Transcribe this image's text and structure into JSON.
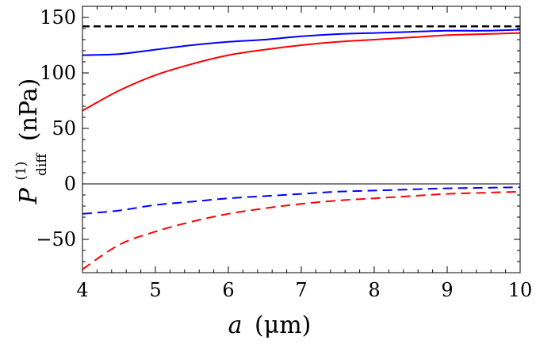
{
  "chart_data": {
    "type": "line",
    "title": "",
    "xlabel": {
      "symbol": "a",
      "unit": "(μm)"
    },
    "ylabel": {
      "symbol": "P",
      "sub": "diff",
      "sup": "(1)",
      "unit": "(nPa)"
    },
    "xlim": [
      4,
      10
    ],
    "ylim": [
      -80,
      160
    ],
    "grid": false,
    "legend": "none",
    "xticks": [
      4,
      5,
      6,
      7,
      8,
      9,
      10
    ],
    "yticks": [
      0,
      50,
      100,
      150
    ],
    "ytick_labels": [
      "0",
      "50",
      "100",
      "150"
    ],
    "yticks_negative": [
      -50
    ],
    "ytick_labels_negative": [
      "−50"
    ],
    "zero_line": 0,
    "x": [
      4.0,
      4.5,
      5.0,
      5.5,
      6.0,
      6.5,
      7.0,
      7.5,
      8.0,
      8.5,
      9.0,
      9.5,
      10.0
    ],
    "series": [
      {
        "color": "#ff0000",
        "dash": "solid",
        "values": [
          66,
          84,
          98,
          108,
          116,
          121,
          125,
          128,
          130,
          132,
          134,
          135,
          136
        ]
      },
      {
        "color": "#0000ff",
        "dash": "solid",
        "values": [
          116,
          117,
          121,
          125,
          128,
          130,
          133,
          135,
          136,
          137,
          138,
          138,
          139
        ]
      },
      {
        "color": "#000000",
        "dash": "dashed",
        "values": [
          142,
          142,
          142,
          142,
          142,
          142,
          142,
          142,
          142,
          142,
          142,
          142,
          142
        ]
      },
      {
        "color": "#0000ff",
        "dash": "dashed",
        "values": [
          -27,
          -24,
          -19,
          -16,
          -13,
          -11,
          -9,
          -7,
          -6,
          -5,
          -4,
          -3.5,
          -3
        ]
      },
      {
        "color": "#ff0000",
        "dash": "dashed",
        "values": [
          -77,
          -55,
          -43,
          -34,
          -27,
          -22,
          -18,
          -15,
          -13,
          -11,
          -9,
          -8,
          -7
        ]
      }
    ]
  }
}
